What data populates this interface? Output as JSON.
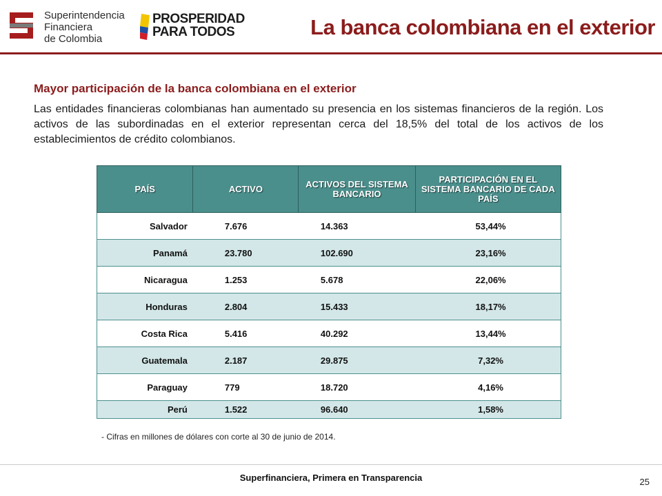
{
  "header": {
    "logo_sfc_lines": [
      "Superintendencia",
      "Financiera",
      "de Colombia"
    ],
    "logo_pp_lines": [
      "PROSPERIDAD",
      "PARA TODOS"
    ],
    "title": "La banca colombiana en el exterior",
    "colors": {
      "accent": "#8b1c1c",
      "flag_yellow": "#f2c500",
      "flag_blue": "#1f4fa0",
      "flag_red": "#d0202a"
    }
  },
  "content": {
    "subtitle": "Mayor participación de la banca colombiana en el exterior",
    "paragraph": "Las entidades financieras colombianas han aumentado su presencia en los sistemas financieros de la región. Los activos de las subordinadas en el exterior representan cerca del 18,5% del total de los activos de los establecimientos de crédito colombianos."
  },
  "table": {
    "headers": [
      "PAÍS",
      "ACTIVO",
      "ACTIVOS DEL SISTEMA BANCARIO",
      "PARTICIPACIÓN EN EL SISTEMA BANCARIO DE CADA PAÍS"
    ],
    "rows": [
      [
        "Salvador",
        "7.676",
        "14.363",
        "53,44%"
      ],
      [
        "Panamá",
        "23.780",
        "102.690",
        "23,16%"
      ],
      [
        "Nicaragua",
        "1.253",
        "5.678",
        "22,06%"
      ],
      [
        "Honduras",
        "2.804",
        "15.433",
        "18,17%"
      ],
      [
        "Costa Rica",
        "5.416",
        "40.292",
        "13,44%"
      ],
      [
        "Guatemala",
        "2.187",
        "29.875",
        "7,32%"
      ],
      [
        "Paraguay",
        "779",
        "18.720",
        "4,16%"
      ],
      [
        "Perú",
        "1.522",
        "96.640",
        "1,58%"
      ]
    ],
    "colors": {
      "header_bg": "#4a8f8c",
      "alt_row_bg": "#d3e7e8"
    }
  },
  "footnote": "- Cifras en millones de dólares con corte al 30 de junio de 2014.",
  "footer": {
    "text": "Superfinanciera, Primera en Transparencia",
    "page_number": "25"
  }
}
